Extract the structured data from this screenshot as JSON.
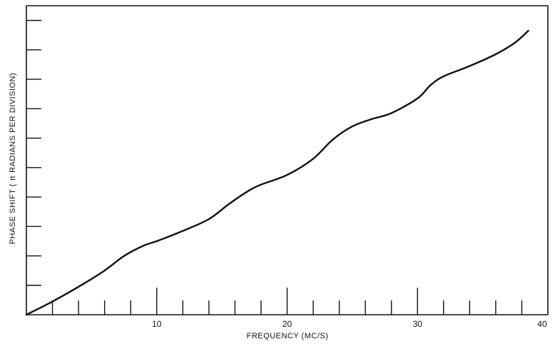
{
  "chart_data": {
    "type": "line",
    "title": "",
    "xlabel": "FREQUENCY (MC/S)",
    "ylabel": "PHASE SHIFT ( π RADIANS PER DIVISION)",
    "xlim": [
      0,
      40
    ],
    "ylim": [
      0,
      10.5
    ],
    "x_ticks": {
      "major": [
        10,
        20,
        30,
        40
      ],
      "major_labels": [
        "10",
        "20",
        "30",
        "40"
      ],
      "minor": [
        2,
        4,
        6,
        8,
        12,
        14,
        16,
        18,
        22,
        24,
        26,
        28,
        32,
        34,
        36,
        38
      ]
    },
    "y_ticks": [
      1,
      2,
      3,
      4,
      5,
      6,
      7,
      8,
      9,
      10
    ],
    "grid": false,
    "series": [
      {
        "color": "#111111",
        "x": [
          0,
          2,
          4,
          6,
          7.5,
          9,
          10,
          12,
          14,
          15.5,
          17,
          18,
          20,
          22,
          23.5,
          25,
          26.5,
          28,
          30,
          31,
          32,
          34,
          36,
          37.5,
          38.5
        ],
        "y": [
          0,
          0.45,
          0.95,
          1.5,
          2.0,
          2.35,
          2.5,
          2.85,
          3.25,
          3.75,
          4.2,
          4.42,
          4.75,
          5.3,
          5.95,
          6.4,
          6.65,
          6.85,
          7.35,
          7.8,
          8.1,
          8.45,
          8.85,
          9.25,
          9.65
        ]
      }
    ]
  }
}
